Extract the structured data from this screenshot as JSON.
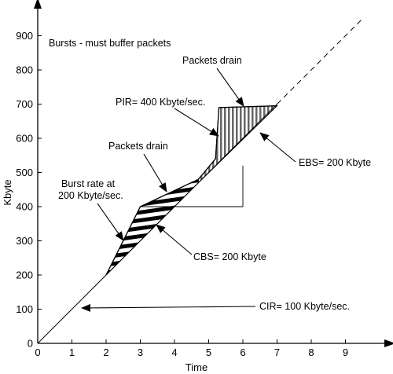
{
  "chart_data": {
    "type": "line",
    "title": "",
    "xlabel": "Time",
    "ylabel": "Kbyte",
    "xlim": [
      0,
      10
    ],
    "ylim": [
      0,
      1000
    ],
    "x_ticks": [
      0,
      1,
      2,
      3,
      4,
      5,
      6,
      7,
      8,
      9
    ],
    "y_ticks": [
      0,
      100,
      200,
      300,
      400,
      500,
      600,
      700,
      800,
      900
    ],
    "grid": false,
    "legend": "none",
    "series": [
      {
        "role": "cir-line",
        "style": "solid-then-dashed",
        "solid_x": [
          0,
          7
        ],
        "solid_y": [
          0,
          700
        ],
        "dashed_x": [
          7,
          9.5
        ],
        "dashed_y": [
          700,
          950
        ]
      },
      {
        "role": "traffic-curve",
        "x": [
          2,
          3,
          4.7,
          5.2,
          5.3,
          7
        ],
        "y": [
          200,
          400,
          480,
          540,
          690,
          695
        ]
      },
      {
        "role": "cbs-bucket-outline",
        "x": [
          3,
          6,
          6
        ],
        "y": [
          400,
          400,
          520
        ]
      }
    ],
    "regions": [
      {
        "name": "CBS",
        "fill": "horizontal-stripes",
        "x": [
          2,
          3,
          4.7,
          4.7,
          2
        ],
        "y": [
          200,
          400,
          480,
          470,
          200
        ]
      },
      {
        "name": "EBS",
        "fill": "vertical-stripes",
        "x": [
          4.7,
          5.2,
          5.3,
          7,
          4.7
        ],
        "y": [
          480,
          540,
          690,
          695,
          470
        ]
      }
    ],
    "annotations": [
      {
        "text": "Bursts - must buffer packets"
      },
      {
        "text": "Packets drain",
        "target": "top plateau"
      },
      {
        "text": "PIR= 400 Kbyte/sec.",
        "target": "steep rise"
      },
      {
        "text": "Packets drain",
        "target": "middle segment"
      },
      {
        "text": "EBS= 200 Kbyte",
        "target": "vertical-striped region"
      },
      {
        "text": "Burst rate at",
        "text2": "200 Kbyte/sec.",
        "target": "first burst"
      },
      {
        "text": "CBS= 200 Kbyte",
        "target": "horizontal-striped region"
      },
      {
        "text": "CIR= 100 Kbyte/sec.",
        "target": "CIR line"
      }
    ]
  },
  "colors": {
    "ink": "#000000",
    "background": "#ffffff"
  }
}
